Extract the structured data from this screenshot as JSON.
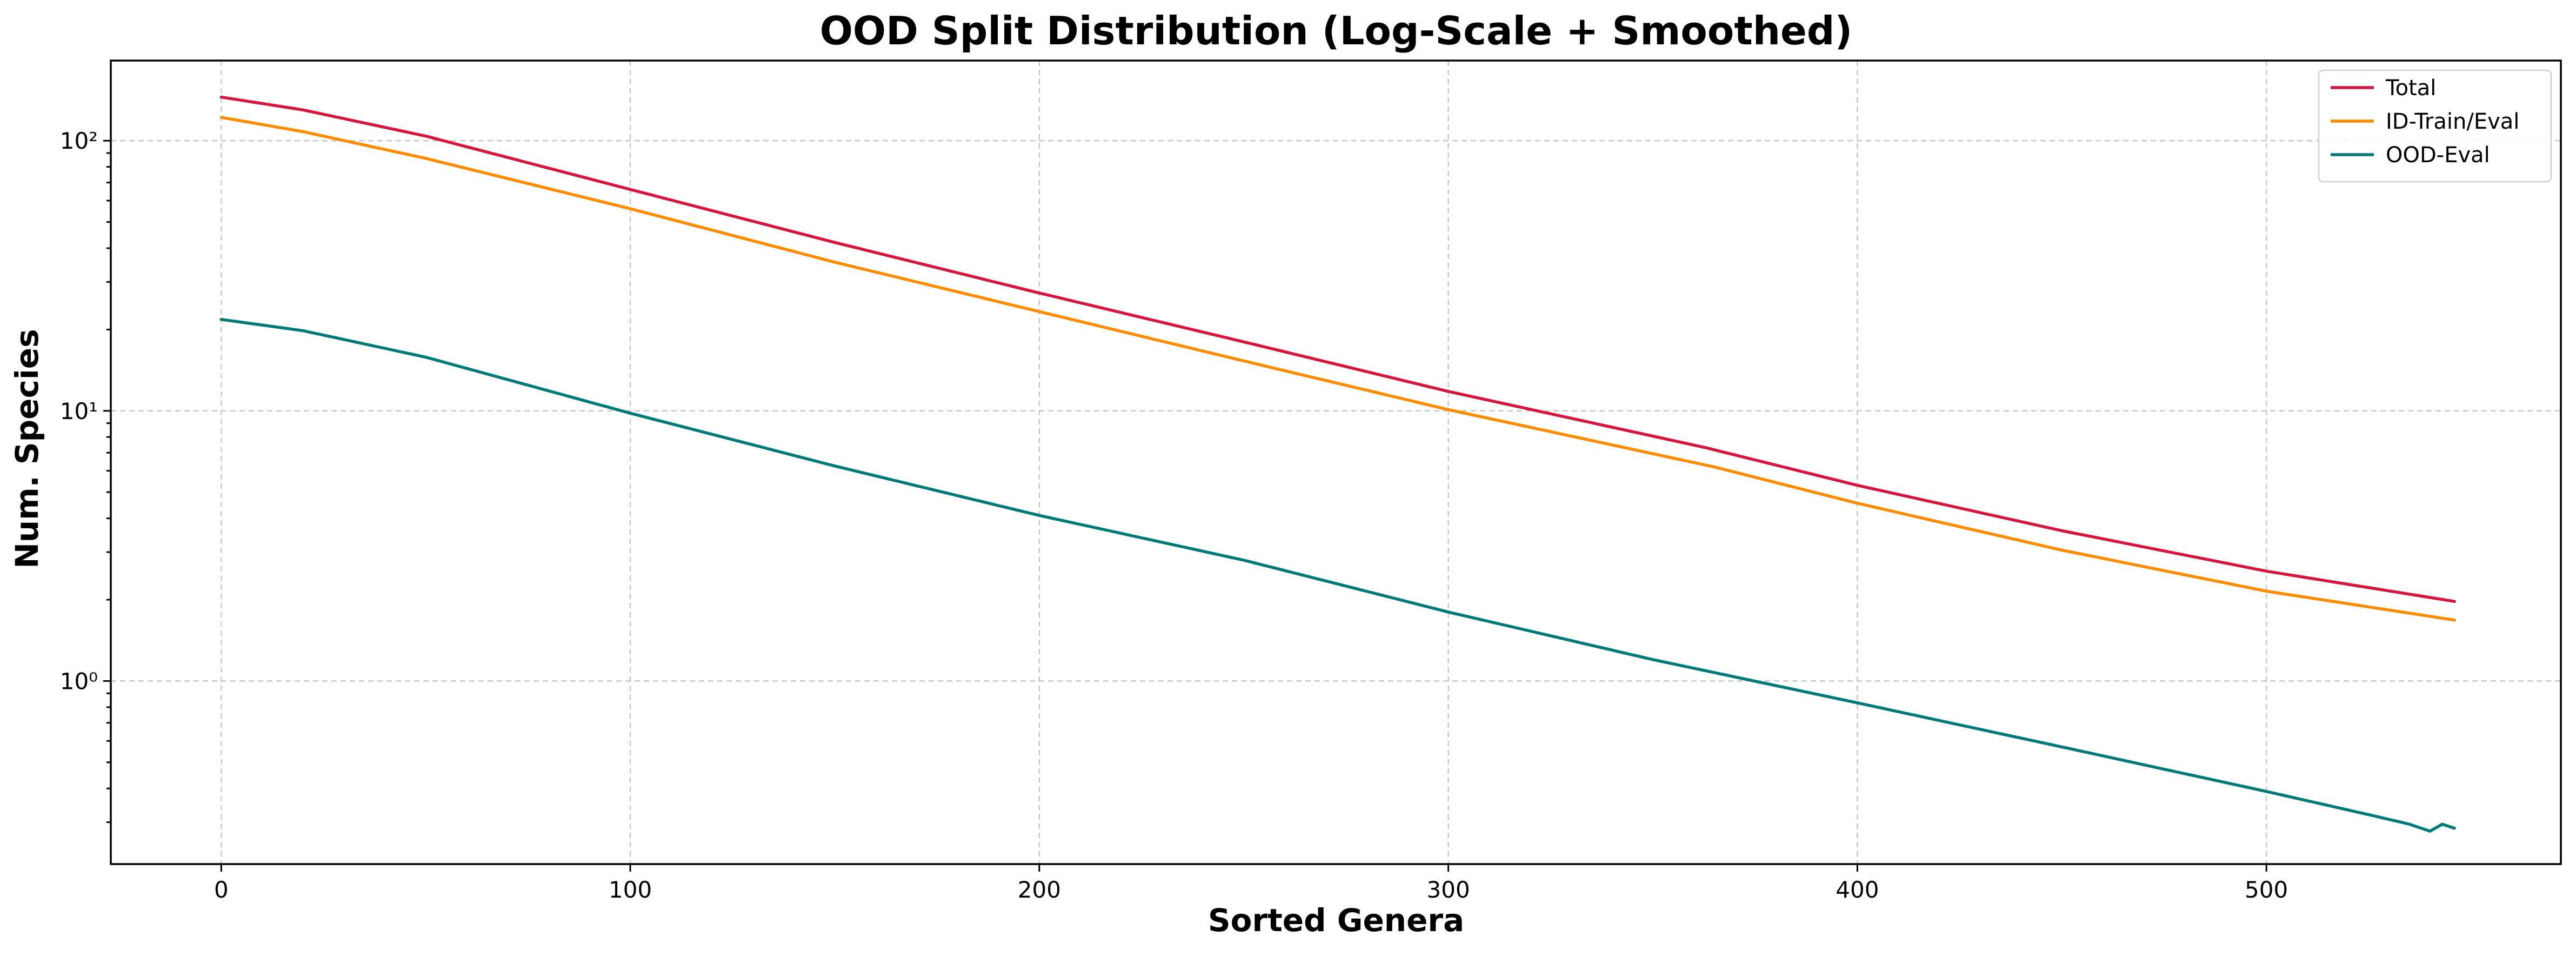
{
  "chart_data": {
    "type": "line",
    "title": "OOD Split Distribution (Log-Scale + Smoothed)",
    "xlabel": "Sorted Genera",
    "ylabel": "Num. Species",
    "xlim": [
      -27,
      572
    ],
    "ylim": [
      0.21,
      198
    ],
    "yscale": "log",
    "grid": true,
    "legend_position": "top-right",
    "x_ticks": [
      0,
      100,
      200,
      300,
      400,
      500
    ],
    "x_tick_labels": [
      "0",
      "100",
      "200",
      "300",
      "400",
      "500"
    ],
    "y_ticks": [
      1,
      10,
      100
    ],
    "y_tick_labels": [
      "10⁰",
      "10¹",
      "10²"
    ],
    "series": [
      {
        "name": "Total",
        "color": "#d6163f",
        "x": [
          0,
          20,
          50,
          100,
          150,
          200,
          250,
          300,
          363,
          400,
          450,
          500,
          546
        ],
        "y": [
          145,
          130,
          104,
          66,
          42,
          27.3,
          18.0,
          11.8,
          7.3,
          5.3,
          3.6,
          2.55,
          1.97
        ]
      },
      {
        "name": "ID-Train/Eval",
        "color": "#ff8c00",
        "x": [
          0,
          20,
          50,
          100,
          150,
          200,
          250,
          300,
          365,
          400,
          450,
          500,
          546
        ],
        "y": [
          122,
          108,
          86,
          56,
          35.5,
          23.3,
          15.3,
          10.1,
          6.2,
          4.55,
          3.05,
          2.15,
          1.68
        ]
      },
      {
        "name": "OOD-Eval",
        "color": "#007a78",
        "x": [
          0,
          20,
          50,
          100,
          150,
          200,
          250,
          300,
          350,
          400,
          450,
          500,
          525,
          535,
          540,
          543,
          546
        ],
        "y": [
          21.8,
          19.8,
          15.8,
          9.8,
          6.25,
          4.1,
          2.8,
          1.8,
          1.2,
          0.83,
          0.57,
          0.39,
          0.32,
          0.295,
          0.278,
          0.295,
          0.285
        ]
      }
    ]
  }
}
